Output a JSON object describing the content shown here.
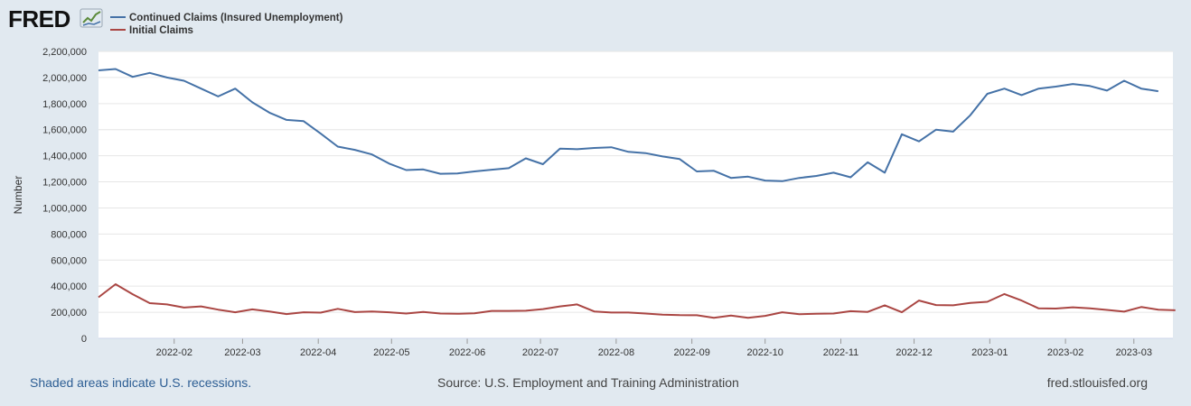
{
  "logo": {
    "text": "FRED"
  },
  "colors": {
    "series1": "#4572a7",
    "series2": "#aa4643",
    "plot_bg": "#ffffff",
    "page_bg": "#e1e9f0",
    "grid": "#e6e6e6"
  },
  "footer": {
    "left": "Shaded areas indicate U.S. recessions.",
    "center": "Source: U.S. Employment and Training Administration",
    "right": "fred.stlouisfed.org"
  },
  "chart_data": {
    "type": "line",
    "title": "",
    "xlabel": "",
    "ylabel": "Number",
    "ylim": [
      0,
      2200000
    ],
    "yticks": [
      0,
      200000,
      400000,
      600000,
      800000,
      1000000,
      1200000,
      1400000,
      1600000,
      1800000,
      2000000,
      2200000
    ],
    "ytick_labels": [
      "0",
      "200,000",
      "400,000",
      "600,000",
      "800,000",
      "1,000,000",
      "1,200,000",
      "1,400,000",
      "1,600,000",
      "1,800,000",
      "2,000,000",
      "2,200,000"
    ],
    "xlim_days": [
      0,
      440
    ],
    "xtick_days": [
      31,
      59,
      90,
      120,
      151,
      181,
      212,
      243,
      273,
      304,
      334,
      365,
      396,
      424
    ],
    "xtick_labels": [
      "2022-02",
      "2022-03",
      "2022-04",
      "2022-05",
      "2022-06",
      "2022-07",
      "2022-08",
      "2022-09",
      "2022-10",
      "2022-11",
      "2022-12",
      "2023-01",
      "2023-02",
      "2023-03"
    ],
    "series": [
      {
        "name": "Continued Claims (Insured Unemployment)",
        "color": "#4572a7",
        "x_days": [
          0,
          7,
          14,
          21,
          28,
          35,
          42,
          49,
          56,
          63,
          70,
          77,
          84,
          91,
          98,
          105,
          112,
          119,
          126,
          133,
          140,
          147,
          154,
          161,
          168,
          175,
          182,
          189,
          196,
          203,
          210,
          217,
          224,
          231,
          238,
          245,
          252,
          259,
          266,
          273,
          280,
          287,
          294,
          301,
          308,
          315,
          322,
          329,
          336,
          343,
          350,
          357,
          364,
          371,
          378,
          385,
          392,
          399,
          406,
          413,
          420,
          427,
          434
        ],
        "values": [
          2055000,
          2065000,
          2005000,
          2035000,
          2000000,
          1975000,
          1915000,
          1855000,
          1915000,
          1810000,
          1730000,
          1675000,
          1665000,
          1570000,
          1470000,
          1445000,
          1410000,
          1340000,
          1290000,
          1295000,
          1262000,
          1265000,
          1280000,
          1293000,
          1305000,
          1380000,
          1335000,
          1455000,
          1450000,
          1460000,
          1465000,
          1430000,
          1420000,
          1395000,
          1375000,
          1280000,
          1285000,
          1230000,
          1240000,
          1210000,
          1205000,
          1230000,
          1245000,
          1270000,
          1235000,
          1350000,
          1270000,
          1565000,
          1510000,
          1600000,
          1585000,
          1710000,
          1875000,
          1915000,
          1865000,
          1915000,
          1930000,
          1950000,
          1935000,
          1900000,
          1975000,
          1915000,
          1895000
        ]
      },
      {
        "name": "Initial Claims",
        "color": "#aa4643",
        "x_days": [
          0,
          7,
          14,
          21,
          28,
          35,
          42,
          49,
          56,
          63,
          70,
          77,
          84,
          91,
          98,
          105,
          112,
          119,
          126,
          133,
          140,
          147,
          154,
          161,
          168,
          175,
          182,
          189,
          196,
          203,
          210,
          217,
          224,
          231,
          238,
          245,
          252,
          259,
          266,
          273,
          280,
          287,
          294,
          301,
          308,
          315,
          322,
          329,
          336,
          343,
          350,
          357,
          364,
          371,
          378,
          385,
          392,
          399,
          406,
          413,
          420,
          427,
          434,
          441
        ],
        "values": [
          315000,
          415000,
          338000,
          270000,
          260000,
          236000,
          245000,
          220000,
          200000,
          222000,
          206000,
          186000,
          200000,
          197000,
          226000,
          201000,
          206000,
          200000,
          190000,
          203000,
          190000,
          188000,
          192000,
          210000,
          210000,
          212000,
          224000,
          245000,
          260000,
          206000,
          198000,
          198000,
          190000,
          182000,
          178000,
          177000,
          157000,
          174000,
          157000,
          172000,
          200000,
          185000,
          189000,
          190000,
          208000,
          203000,
          253000,
          200000,
          290000,
          255000,
          253000,
          271000,
          280000,
          340000,
          290000,
          230000,
          228000,
          238000,
          230000,
          218000,
          205000,
          240000,
          220000,
          215000
        ]
      }
    ],
    "legend": "top-left"
  }
}
